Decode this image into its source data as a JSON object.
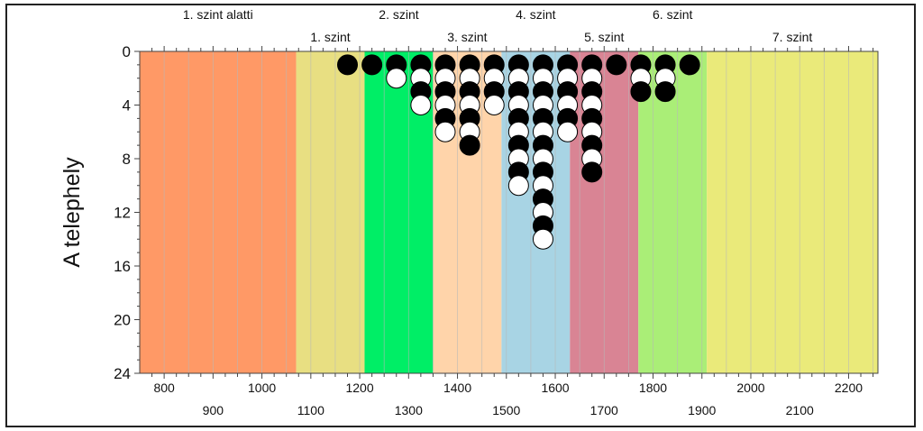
{
  "chart_data": {
    "type": "scatter",
    "ylabel": "A telephely",
    "xlim": [
      750,
      2260
    ],
    "ylim": [
      24,
      0
    ],
    "y_ticks": [
      0,
      4,
      8,
      12,
      16,
      20,
      24
    ],
    "x_ticks_upper": [
      800,
      1000,
      1200,
      1400,
      1600,
      1800,
      2000,
      2200
    ],
    "x_ticks_lower": [
      900,
      1100,
      1300,
      1500,
      1700,
      1900,
      2100
    ],
    "bands": [
      {
        "label": "1. szint alatti",
        "from": 750,
        "to": 1070,
        "color": "#FF9966",
        "label_row": "top"
      },
      {
        "label": "1. szint",
        "from": 1070,
        "to": 1210,
        "color": "#E8DF82",
        "label_row": "bottom"
      },
      {
        "label": "2. szint",
        "from": 1210,
        "to": 1350,
        "color": "#00EE66",
        "label_row": "top"
      },
      {
        "label": "3. szint",
        "from": 1350,
        "to": 1490,
        "color": "#FFD4AA",
        "label_row": "bottom"
      },
      {
        "label": "4. szint",
        "from": 1490,
        "to": 1630,
        "color": "#A8D4E4",
        "label_row": "top"
      },
      {
        "label": "5. szint",
        "from": 1630,
        "to": 1770,
        "color": "#D98494",
        "label_row": "bottom"
      },
      {
        "label": "6. szint",
        "from": 1770,
        "to": 1910,
        "color": "#AAEE77",
        "label_row": "top"
      },
      {
        "label": "7. szint",
        "from": 1910,
        "to": 2260,
        "color": "#EAEA7A",
        "label_row": "bottom"
      }
    ],
    "series": [
      {
        "name": "black",
        "color": "#000000",
        "points": [
          [
            1175,
            1
          ],
          [
            1225,
            1
          ],
          [
            1275,
            1
          ],
          [
            1325,
            1
          ],
          [
            1325,
            3
          ],
          [
            1375,
            1
          ],
          [
            1375,
            3
          ],
          [
            1375,
            5
          ],
          [
            1425,
            1
          ],
          [
            1425,
            3
          ],
          [
            1425,
            5
          ],
          [
            1425,
            7
          ],
          [
            1475,
            1
          ],
          [
            1475,
            3
          ],
          [
            1525,
            1
          ],
          [
            1525,
            3
          ],
          [
            1525,
            5
          ],
          [
            1525,
            7
          ],
          [
            1525,
            9
          ],
          [
            1575,
            1
          ],
          [
            1575,
            3
          ],
          [
            1575,
            5
          ],
          [
            1575,
            7
          ],
          [
            1575,
            9
          ],
          [
            1575,
            11
          ],
          [
            1575,
            13
          ],
          [
            1625,
            1
          ],
          [
            1625,
            3
          ],
          [
            1625,
            5
          ],
          [
            1675,
            1
          ],
          [
            1675,
            3
          ],
          [
            1675,
            5
          ],
          [
            1675,
            7
          ],
          [
            1675,
            9
          ],
          [
            1725,
            1
          ],
          [
            1775,
            1
          ],
          [
            1775,
            3
          ],
          [
            1825,
            1
          ],
          [
            1825,
            3
          ],
          [
            1875,
            1
          ]
        ]
      },
      {
        "name": "white",
        "color": "#ffffff",
        "points": [
          [
            1275,
            2
          ],
          [
            1325,
            2
          ],
          [
            1325,
            4
          ],
          [
            1375,
            2
          ],
          [
            1375,
            4
          ],
          [
            1375,
            6
          ],
          [
            1425,
            2
          ],
          [
            1425,
            4
          ],
          [
            1425,
            6
          ],
          [
            1475,
            2
          ],
          [
            1475,
            4
          ],
          [
            1525,
            2
          ],
          [
            1525,
            4
          ],
          [
            1525,
            6
          ],
          [
            1525,
            8
          ],
          [
            1525,
            10
          ],
          [
            1575,
            2
          ],
          [
            1575,
            4
          ],
          [
            1575,
            6
          ],
          [
            1575,
            8
          ],
          [
            1575,
            10
          ],
          [
            1575,
            12
          ],
          [
            1575,
            14
          ],
          [
            1625,
            2
          ],
          [
            1625,
            4
          ],
          [
            1625,
            6
          ],
          [
            1675,
            2
          ],
          [
            1675,
            4
          ],
          [
            1675,
            6
          ],
          [
            1675,
            8
          ],
          [
            1775,
            2
          ],
          [
            1825,
            2
          ]
        ]
      }
    ]
  }
}
